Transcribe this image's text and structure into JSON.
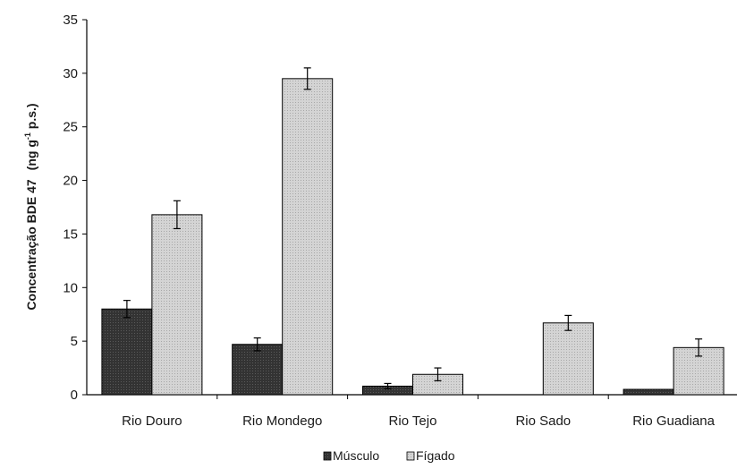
{
  "chart_data": {
    "type": "bar",
    "categories": [
      "Rio Douro",
      "Rio Mondego",
      "Rio Tejo",
      "Rio Sado",
      "Rio Guadiana"
    ],
    "series": [
      {
        "name": "Músculo",
        "values": [
          8.0,
          4.7,
          0.8,
          0,
          0.5
        ],
        "errors": [
          0.8,
          0.6,
          0.25,
          0,
          0
        ],
        "color": "#333333"
      },
      {
        "name": "Fígado",
        "values": [
          16.8,
          29.5,
          1.9,
          6.7,
          4.4
        ],
        "errors": [
          1.3,
          1.0,
          0.6,
          0.7,
          0.8
        ],
        "color": "#cfcfcf"
      }
    ],
    "ylabel_main": "Concentração BDE 47",
    "ylabel_unit": "(ng g",
    "ylabel_sup": "-1",
    "ylabel_tail": " p.s.)",
    "ylim": [
      0,
      35
    ],
    "yticks": [
      "0",
      "5",
      "10",
      "15",
      "20",
      "25",
      "30",
      "35"
    ],
    "legend_position": "bottom",
    "grid": false
  }
}
